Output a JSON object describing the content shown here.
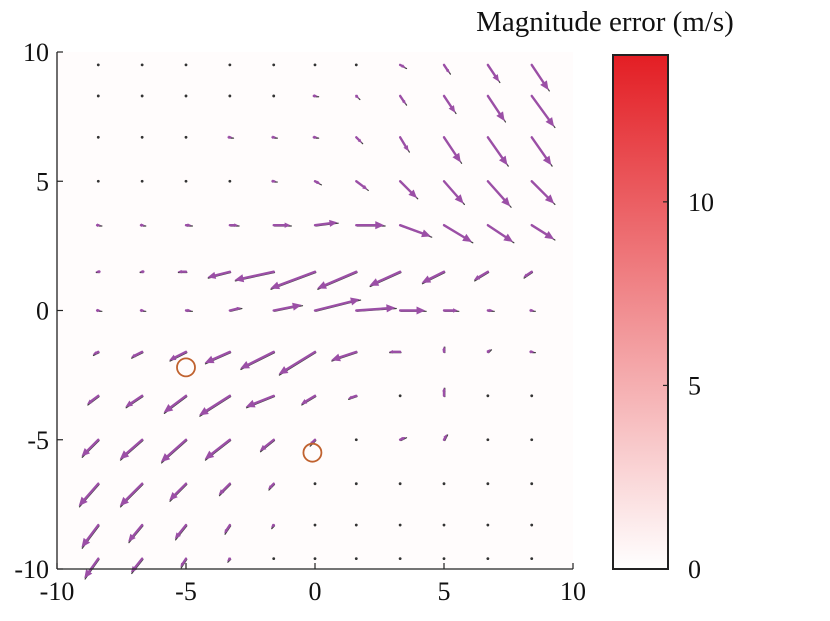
{
  "chart_data": {
    "type": "vector-field",
    "title": "",
    "xlabel": "",
    "ylabel": "",
    "xlim": [
      -10,
      10
    ],
    "ylim": [
      -10,
      10
    ],
    "xticks": [
      -10,
      -5,
      0,
      5,
      10
    ],
    "yticks": [
      -10,
      -5,
      0,
      5,
      10
    ],
    "xtick_labels": [
      "-10",
      "-5",
      "0",
      "5",
      "10"
    ],
    "ytick_labels": [
      "-10",
      "-5",
      "0",
      "5",
      "10"
    ],
    "grid": false,
    "colors": {
      "arrow": "#9b4fa6",
      "reference_arrow": "#000000",
      "marker": "#c0622f",
      "colorbar_max": "#e31e24",
      "colorbar_min": "#ffffff"
    },
    "grid_x": [
      -8.4,
      -6.7,
      -5.0,
      -3.3,
      -1.6,
      0.0,
      1.6,
      3.3,
      5.0,
      6.7,
      8.4
    ],
    "grid_y": [
      9.5,
      8.3,
      6.7,
      5.0,
      3.3,
      1.5,
      0.0,
      -1.6,
      -3.3,
      -5.0,
      -6.7,
      -8.3,
      -9.6
    ],
    "u": [
      [
        0.0,
        0.0,
        0.0,
        0.0,
        0.0,
        0.0,
        0.0,
        0.2,
        0.2,
        0.4,
        0.6
      ],
      [
        0.0,
        0.0,
        0.0,
        0.0,
        0.0,
        0.1,
        0.1,
        0.2,
        0.4,
        0.6,
        0.8
      ],
      [
        0.0,
        0.0,
        0.0,
        0.1,
        0.1,
        0.1,
        0.2,
        0.3,
        0.6,
        0.7,
        0.7
      ],
      [
        0.0,
        0.0,
        0.0,
        0.0,
        0.1,
        0.2,
        0.4,
        0.6,
        0.7,
        0.8,
        0.8
      ],
      [
        0.1,
        0.1,
        0.2,
        0.3,
        0.6,
        0.8,
        1.0,
        1.1,
        1.0,
        0.9,
        0.8
      ],
      [
        -0.1,
        -0.1,
        -0.3,
        -0.8,
        -1.4,
        -1.6,
        -1.4,
        -1.1,
        -0.8,
        -0.5,
        -0.3
      ],
      [
        0.1,
        0.1,
        0.2,
        0.4,
        1.0,
        1.6,
        1.4,
        0.9,
        0.5,
        0.2,
        0.1
      ],
      [
        -0.2,
        -0.4,
        -0.6,
        -0.9,
        -1.2,
        -1.3,
        -0.9,
        -0.4,
        0.0,
        0.1,
        0.1
      ],
      [
        -0.4,
        -0.6,
        -0.8,
        -1.1,
        -1.0,
        -0.5,
        -0.3,
        0.0,
        0.0,
        0.0,
        0.0
      ],
      [
        -0.6,
        -0.8,
        -0.9,
        -0.9,
        -0.5,
        -0.2,
        0.0,
        0.2,
        0.1,
        0.0,
        0.0
      ],
      [
        -0.7,
        -0.8,
        -0.6,
        -0.4,
        -0.2,
        0.0,
        0.0,
        0.0,
        0.0,
        0.0,
        0.0
      ],
      [
        -0.6,
        -0.5,
        -0.4,
        -0.2,
        -0.1,
        0.0,
        0.0,
        0.0,
        0.0,
        0.0,
        0.0
      ],
      [
        -0.5,
        -0.4,
        -0.2,
        -0.1,
        0.0,
        0.0,
        0.0,
        0.0,
        0.0,
        0.0,
        0.0
      ]
    ],
    "v": [
      [
        0.0,
        0.0,
        0.0,
        0.0,
        0.0,
        0.0,
        0.0,
        -0.1,
        -0.3,
        -0.6,
        -0.9
      ],
      [
        0.0,
        0.0,
        0.0,
        0.0,
        0.0,
        0.0,
        -0.1,
        -0.3,
        -0.6,
        -0.9,
        -1.1
      ],
      [
        0.0,
        0.0,
        0.0,
        0.0,
        0.0,
        0.0,
        -0.2,
        -0.5,
        -0.9,
        -1.0,
        -1.0
      ],
      [
        0.0,
        0.0,
        0.0,
        0.0,
        0.0,
        -0.1,
        -0.3,
        -0.6,
        -0.8,
        -0.9,
        -0.8
      ],
      [
        0.0,
        0.0,
        0.0,
        0.0,
        0.0,
        0.1,
        0.0,
        -0.4,
        -0.6,
        -0.6,
        -0.5
      ],
      [
        0.0,
        0.0,
        0.0,
        -0.2,
        -0.3,
        -0.6,
        -0.6,
        -0.5,
        -0.4,
        -0.3,
        -0.2
      ],
      [
        0.0,
        0.0,
        0.0,
        0.1,
        0.2,
        0.4,
        0.1,
        0.0,
        0.0,
        0.0,
        0.0
      ],
      [
        -0.1,
        -0.2,
        -0.3,
        -0.4,
        -0.6,
        -0.8,
        -0.3,
        0.0,
        0.2,
        0.1,
        0.0
      ],
      [
        -0.3,
        -0.4,
        -0.6,
        -0.7,
        -0.4,
        -0.3,
        -0.1,
        0.0,
        0.3,
        0.0,
        0.0
      ],
      [
        -0.6,
        -0.7,
        -0.8,
        -0.7,
        -0.4,
        -0.2,
        0.0,
        0.1,
        0.2,
        0.0,
        0.0
      ],
      [
        -0.8,
        -0.8,
        -0.6,
        -0.4,
        -0.2,
        0.0,
        0.0,
        0.0,
        0.0,
        0.0,
        0.0
      ],
      [
        -0.8,
        -0.6,
        -0.5,
        -0.3,
        -0.1,
        0.0,
        0.0,
        0.0,
        0.0,
        0.0,
        0.0
      ],
      [
        -0.7,
        -0.5,
        -0.3,
        -0.1,
        0.0,
        0.0,
        0.0,
        0.0,
        0.0,
        0.0,
        0.0
      ]
    ],
    "markers": [
      {
        "x": -5.0,
        "y": -2.2
      },
      {
        "x": -0.1,
        "y": -5.5
      }
    ],
    "colorbar": {
      "label": "Magnitude error (m/s)",
      "min": 0,
      "max": 14,
      "ticks": [
        0,
        5,
        10
      ],
      "tick_labels": [
        "0",
        "5",
        "10"
      ]
    }
  }
}
